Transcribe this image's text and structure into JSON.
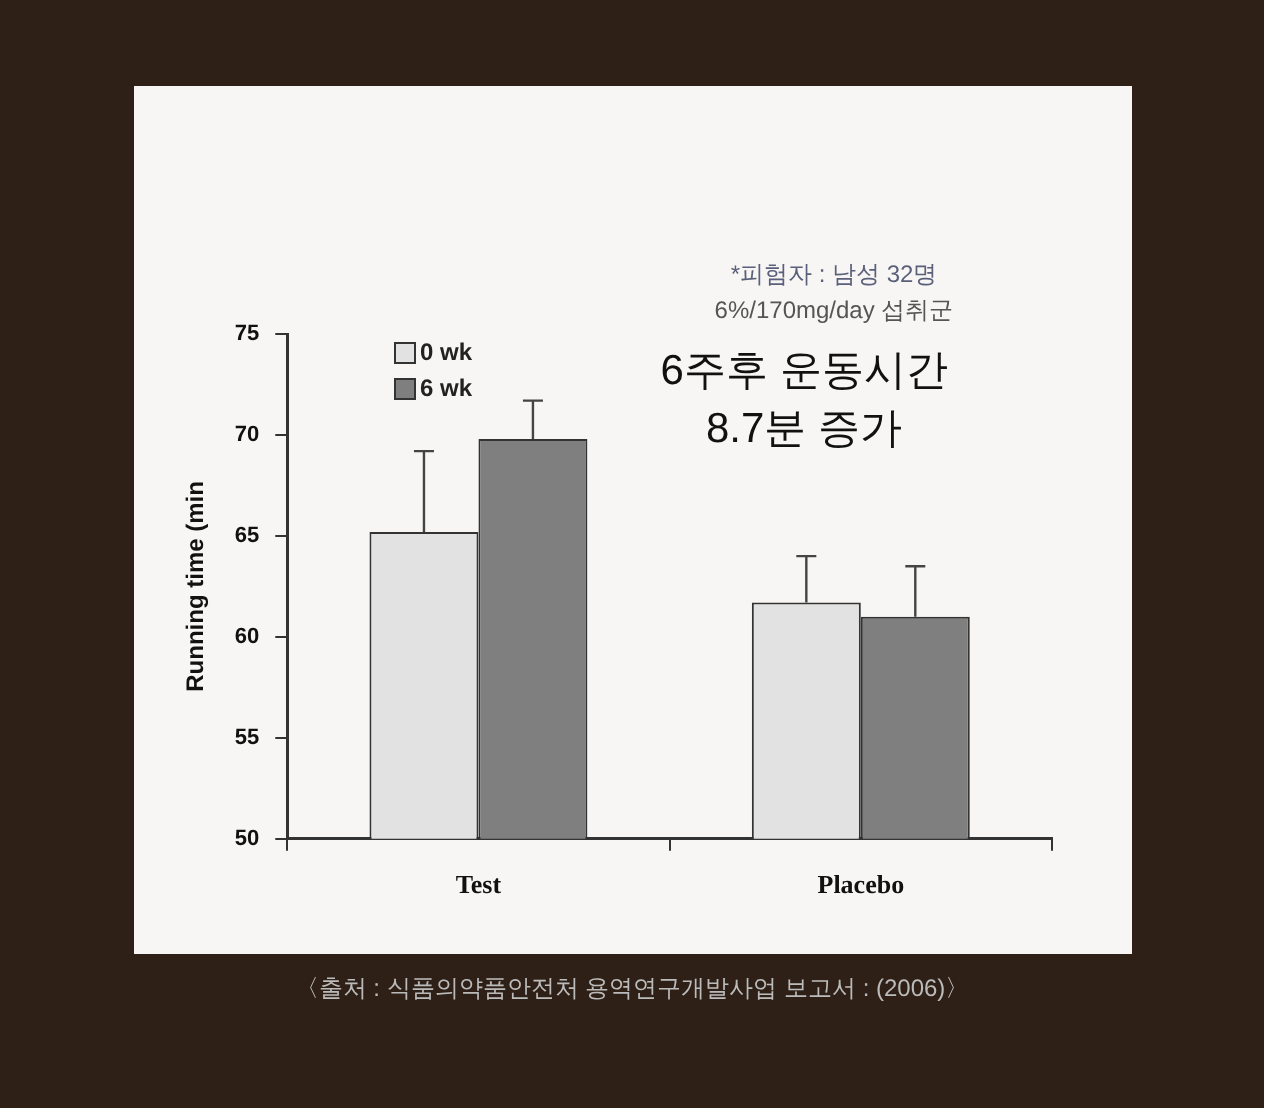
{
  "chart_data": {
    "type": "bar",
    "categories": [
      "Test",
      "Placebo"
    ],
    "series": [
      {
        "name": "0 wk",
        "color": "#e2e2e2",
        "values": [
          65.2,
          61.7
        ],
        "errors": [
          [
            65.2,
            69.2
          ],
          [
            61.7,
            64.0
          ]
        ]
      },
      {
        "name": "6 wk",
        "color": "#7f7f7f",
        "values": [
          69.8,
          61.0
        ],
        "errors": [
          [
            69.8,
            71.7
          ],
          [
            61.0,
            63.5
          ]
        ]
      }
    ],
    "ylabel": "Running time (min",
    "ylim": [
      50,
      75
    ],
    "yticks": [
      50,
      55,
      60,
      65,
      70,
      75
    ],
    "grid": false,
    "legend": "top left",
    "annotations": [
      "*피험자 : 남성 32명",
      "6%/170mg/day 섭취군",
      "6주후 운동시간",
      "8.7분 증가",
      "〈출처 : 식품의약품안전처 용역연구개발사업 보고서 : (2006)〉"
    ]
  }
}
